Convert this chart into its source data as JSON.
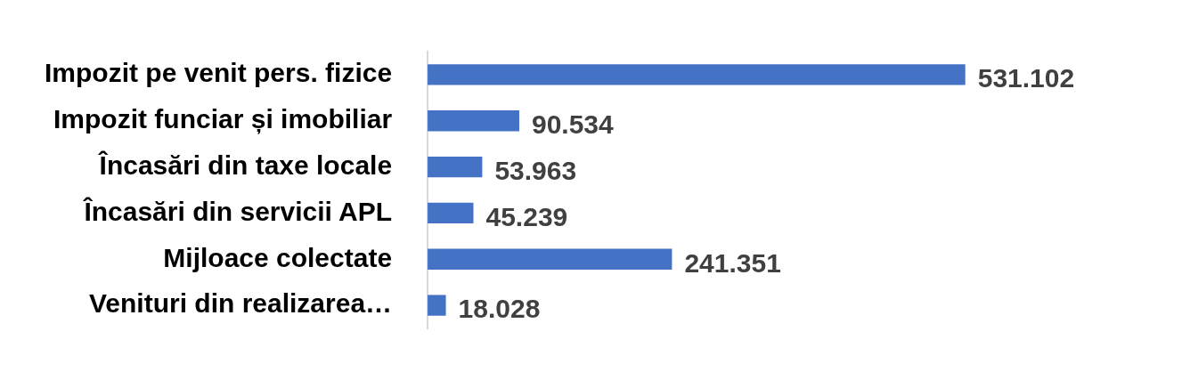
{
  "chart_data": {
    "type": "bar",
    "orientation": "horizontal",
    "categories": [
      "Impozit pe venit pers. fizice",
      "Impozit funciar și imobiliar",
      "Încasări din taxe locale",
      "Încasări din servicii APL",
      "Mijloace colectate",
      "Venituri din realizarea…"
    ],
    "values": [
      531.102,
      90.534,
      53.963,
      45.239,
      241.351,
      18.028
    ],
    "value_labels": [
      "531.102",
      "90.534",
      "53.963",
      "45.239",
      "241.351",
      "18.028"
    ],
    "color": "#4472c4",
    "grid": false,
    "legend": false,
    "tick_labels": "y"
  }
}
